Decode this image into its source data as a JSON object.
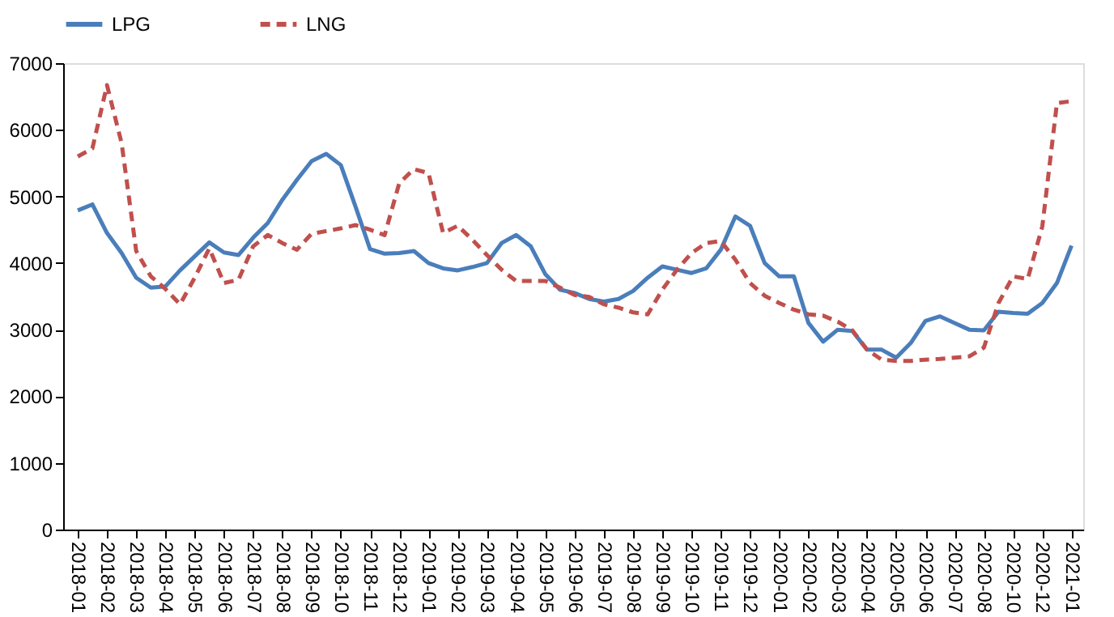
{
  "chart_data": {
    "type": "line",
    "ylim": [
      0,
      7000
    ],
    "yticks": [
      0,
      1000,
      2000,
      3000,
      4000,
      5000,
      6000,
      7000
    ],
    "categories": [
      "2018-01",
      null,
      "2018-02",
      null,
      "2018-03",
      null,
      "2018-04",
      null,
      "2018-05",
      null,
      "2018-06",
      null,
      "2018-07",
      null,
      "2018-08",
      null,
      "2018-09",
      null,
      "2018-10",
      null,
      "2018-11",
      null,
      "2018-12",
      null,
      "2019-01",
      null,
      "2019-02",
      null,
      "2019-03",
      null,
      "2019-04",
      null,
      "2019-05",
      null,
      "2019-06",
      null,
      "2019-07",
      null,
      "2019-08",
      null,
      "2019-09",
      null,
      "2019-10",
      null,
      "2019-11",
      null,
      "2019-12",
      null,
      "2020-01",
      null,
      "2020-02",
      null,
      "2020-03",
      null,
      "2020-04",
      null,
      "2020-05",
      null,
      "2020-06",
      null,
      "2020-07",
      null,
      "2020-08",
      null,
      "2020-10",
      null,
      "2020-12",
      null,
      "2021-01"
    ],
    "grid": false,
    "legend": "top",
    "marker": "none",
    "series": [
      {
        "name": "LPG",
        "color": "#4a7ebb",
        "line_style": "solid",
        "values": [
          4790,
          4880,
          4450,
          4150,
          3780,
          3630,
          3650,
          3890,
          4100,
          4310,
          4160,
          4120,
          4380,
          4600,
          4950,
          5250,
          5530,
          5640,
          5470,
          4850,
          4210,
          4140,
          4150,
          4180,
          4000,
          3920,
          3890,
          3940,
          4000,
          4300,
          4420,
          4250,
          3830,
          3600,
          3550,
          3460,
          3420,
          3460,
          3580,
          3780,
          3950,
          3900,
          3850,
          3920,
          4200,
          4700,
          4560,
          4000,
          3800,
          3800,
          3100,
          2820,
          3000,
          2980,
          2700,
          2700,
          2580,
          2800,
          3130,
          3200,
          3100,
          3000,
          2990,
          3270,
          3250,
          3240,
          3400,
          3700,
          4260
        ]
      },
      {
        "name": "LNG",
        "color": "#c0504d",
        "line_style": "dashed",
        "values": [
          5600,
          5720,
          6670,
          5800,
          4180,
          3800,
          3610,
          3380,
          3780,
          4220,
          3700,
          3750,
          4250,
          4420,
          4300,
          4200,
          4440,
          4480,
          4520,
          4570,
          4500,
          4420,
          5200,
          5410,
          5350,
          4450,
          4560,
          4350,
          4120,
          3900,
          3730,
          3730,
          3730,
          3630,
          3520,
          3490,
          3380,
          3330,
          3260,
          3230,
          3600,
          3900,
          4150,
          4300,
          4330,
          4050,
          3700,
          3510,
          3400,
          3300,
          3230,
          3210,
          3120,
          2990,
          2700,
          2550,
          2530,
          2530,
          2550,
          2560,
          2580,
          2600,
          2730,
          3400,
          3800,
          3760,
          4550,
          6400,
          6430
        ]
      }
    ]
  }
}
